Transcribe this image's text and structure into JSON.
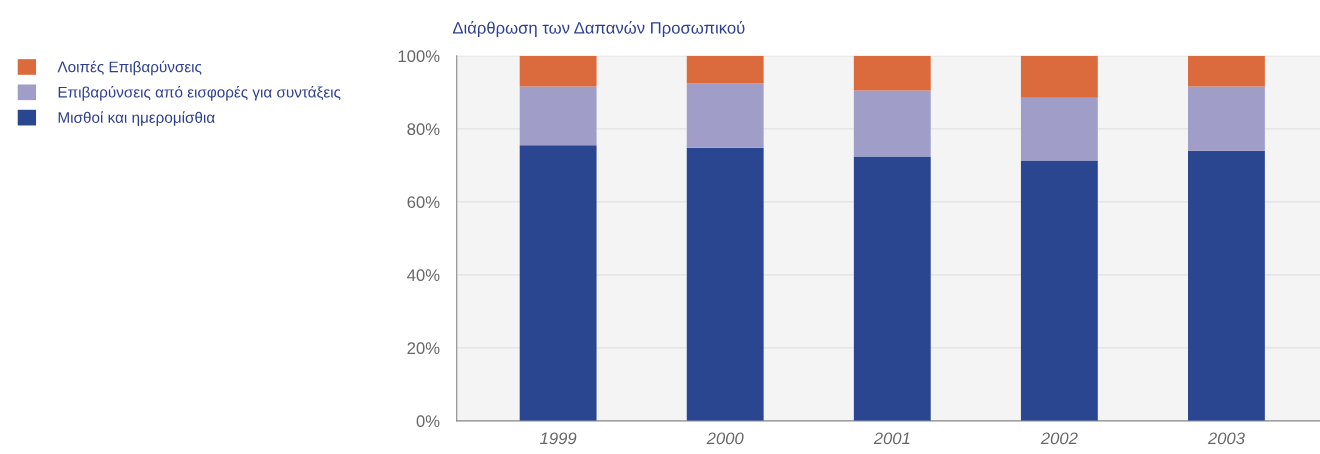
{
  "chart_data": {
    "type": "bar",
    "title": "Διάρθρωση των Δαπανών Προσωπικού",
    "stacked": true,
    "categories": [
      "1999",
      "2000",
      "2001",
      "2002",
      "2003"
    ],
    "series": [
      {
        "name": "Μισθοί και ημερομίσθια",
        "color": "#2b4690",
        "values": [
          75.5,
          74.8,
          72.4,
          71.3,
          74.0
        ]
      },
      {
        "name": "Επιβαρύνσεις από εισφορές για συντάξεις",
        "color": "#a09dc8",
        "values": [
          16.1,
          17.6,
          18.1,
          17.2,
          17.6
        ]
      },
      {
        "name": "Λοιπές Επιβαρύνσεις",
        "color": "#db6b3c",
        "values": [
          8.4,
          7.6,
          9.5,
          11.5,
          8.4
        ]
      }
    ],
    "ylim": [
      0,
      100
    ],
    "yticks": [
      {
        "value": 0,
        "label": "0%"
      },
      {
        "value": 20,
        "label": "20%"
      },
      {
        "value": 40,
        "label": "40%"
      },
      {
        "value": 60,
        "label": "60%"
      },
      {
        "value": 80,
        "label": "80%"
      },
      {
        "value": 100,
        "label": "100%"
      }
    ],
    "grid": "y",
    "legend": "top left"
  }
}
